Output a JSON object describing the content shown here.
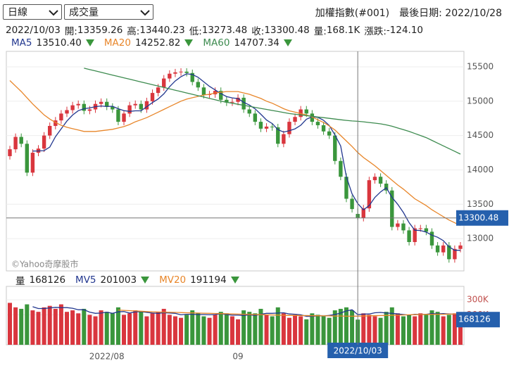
{
  "header": {
    "period": "日線",
    "indicator": "成交量",
    "symbol": "加權指數(#001)",
    "last_date": "最後日期: 2022/10/28"
  },
  "info": {
    "date": "2022/10/03",
    "items": [
      {
        "label": "開:",
        "value": "13359.26"
      },
      {
        "label": "高:",
        "value": "13440.23"
      },
      {
        "label": "低:",
        "value": "13273.48"
      },
      {
        "label": "收:",
        "value": "13300.48"
      },
      {
        "label": "量:",
        "value": "168.1K"
      },
      {
        "label": "漲跌:",
        "value": "-124.10"
      }
    ]
  },
  "watermark": "©Yahoo奇摩股市",
  "chart_data": {
    "type": "candlestick",
    "up_color": "#d9363e",
    "down_color": "#3a963c",
    "grid": true,
    "categories": [
      null,
      null,
      null,
      null,
      null,
      null,
      null,
      null,
      null,
      null,
      null,
      null,
      null,
      null,
      null,
      null,
      null,
      "2022/08",
      null,
      null,
      null,
      null,
      null,
      null,
      null,
      null,
      null,
      null,
      null,
      null,
      null,
      null,
      null,
      null,
      null,
      null,
      null,
      null,
      null,
      null,
      "09",
      null,
      null,
      null,
      null,
      null,
      null,
      null,
      null,
      null,
      null,
      null,
      null,
      null,
      null,
      null,
      null,
      null,
      null,
      null,
      null,
      "2022/10/03",
      null,
      null,
      null,
      null,
      null,
      null,
      null,
      null,
      null,
      null,
      null,
      null,
      null,
      null,
      null,
      null,
      null,
      null
    ],
    "open": [
      14200,
      14300,
      14480,
      14380,
      13960,
      14250,
      14310,
      14500,
      14640,
      14720,
      14820,
      14870,
      14940,
      14960,
      14860,
      14880,
      14960,
      14990,
      14920,
      14880,
      14700,
      14820,
      14940,
      14960,
      14880,
      15000,
      15120,
      15200,
      15330,
      15400,
      15420,
      15430,
      15410,
      15280,
      15200,
      15090,
      15100,
      15150,
      15020,
      14980,
      14990,
      15050,
      14880,
      14820,
      14700,
      14600,
      14630,
      14620,
      14380,
      14520,
      14700,
      14770,
      14880,
      14820,
      14700,
      14650,
      14560,
      14500,
      14130,
      13900,
      13580,
      13359.26,
      13300.48,
      13440,
      13850,
      13900,
      13800,
      13700,
      13170,
      13220,
      13120,
      12950,
      13150,
      13150,
      13100,
      12900,
      12800,
      12900,
      12700,
      12850
    ],
    "high": [
      14350,
      14530,
      14530,
      14430,
      14300,
      14360,
      14550,
      14690,
      14770,
      14870,
      14920,
      14990,
      15010,
      15010,
      14930,
      15010,
      15040,
      15040,
      14970,
      14930,
      14870,
      14990,
      15010,
      15010,
      15050,
      15170,
      15250,
      15380,
      15450,
      15470,
      15480,
      15480,
      15460,
      15330,
      15250,
      15150,
      15200,
      15200,
      15070,
      15040,
      15100,
      15100,
      14930,
      14870,
      14750,
      14680,
      14680,
      14670,
      14570,
      14750,
      14820,
      14930,
      14930,
      14870,
      14750,
      14700,
      14610,
      14550,
      14180,
      13950,
      13630,
      13440.23,
      13490,
      13900,
      13950,
      13950,
      13850,
      13750,
      13270,
      13270,
      13170,
      13200,
      13200,
      13200,
      13150,
      12950,
      12950,
      12950,
      12900,
      12950
    ],
    "low": [
      14150,
      14250,
      14330,
      13910,
      13910,
      14200,
      14260,
      14450,
      14590,
      14670,
      14770,
      14820,
      14890,
      14810,
      14810,
      14830,
      14910,
      14870,
      14830,
      14650,
      14650,
      14770,
      14890,
      14830,
      14830,
      14950,
      15070,
      15150,
      15280,
      15350,
      15370,
      15360,
      15230,
      15150,
      15040,
      15040,
      15050,
      14970,
      14930,
      14930,
      14940,
      14830,
      14770,
      14650,
      14550,
      14550,
      14570,
      14330,
      14330,
      14470,
      14650,
      14720,
      14770,
      14650,
      14600,
      14510,
      14450,
      14080,
      13850,
      13530,
      13380,
      13273.48,
      13250,
      13390,
      13800,
      13750,
      13650,
      13120,
      13120,
      13070,
      12900,
      12900,
      13100,
      13050,
      12850,
      12750,
      12750,
      12650,
      12650,
      12800
    ],
    "close": [
      14300,
      14480,
      14380,
      13960,
      14250,
      14310,
      14500,
      14640,
      14720,
      14820,
      14870,
      14940,
      14960,
      14860,
      14880,
      14960,
      14990,
      14920,
      14880,
      14700,
      14820,
      14940,
      14960,
      14880,
      15000,
      15120,
      15200,
      15330,
      15400,
      15420,
      15430,
      15410,
      15280,
      15200,
      15090,
      15100,
      15150,
      15020,
      14980,
      14990,
      15050,
      14880,
      14820,
      14700,
      14600,
      14630,
      14620,
      14380,
      14520,
      14700,
      14770,
      14880,
      14820,
      14700,
      14650,
      14560,
      14500,
      14130,
      13900,
      13580,
      13430,
      13300.48,
      13440,
      13850,
      13900,
      13800,
      13700,
      13170,
      13220,
      13120,
      12950,
      13150,
      13150,
      13100,
      12900,
      12800,
      12900,
      12700,
      12850,
      12900
    ],
    "ylim": [
      12530,
      15725
    ],
    "yticks": [
      13000,
      13500,
      14000,
      14500,
      15000,
      15500
    ],
    "lines": [
      {
        "name": "MA5",
        "current": "13510.40",
        "color": "#22378f",
        "values": [
          null,
          null,
          null,
          null,
          14274,
          14276,
          14280,
          14332,
          14484,
          14598,
          14710,
          14798,
          14862,
          14890,
          14902,
          14920,
          14930,
          14922,
          14926,
          14890,
          14862,
          14852,
          14860,
          14860,
          14920,
          14980,
          15032,
          15106,
          15210,
          15294,
          15356,
          15398,
          15388,
          15348,
          15282,
          15216,
          15164,
          15112,
          15068,
          15048,
          15038,
          14984,
          14944,
          14888,
          14810,
          14726,
          14674,
          14586,
          14550,
          14570,
          14598,
          14650,
          14738,
          14774,
          14764,
          14722,
          14646,
          14508,
          14348,
          13900,
          13650,
          13510.4,
          13420,
          13480,
          13600,
          13680,
          13740,
          13600,
          13500,
          13380,
          13232,
          13122,
          13118,
          13094,
          13050,
          13020,
          12970,
          12880,
          12830,
          12830
        ]
      },
      {
        "name": "MA20",
        "current": "14252.82",
        "color": "#e8862a",
        "values": [
          15300,
          15220,
          15140,
          15050,
          14960,
          14880,
          14800,
          14740,
          14690,
          14650,
          14620,
          14600,
          14580,
          14560,
          14560,
          14560,
          14570,
          14580,
          14590,
          14610,
          14630,
          14660,
          14700,
          14730,
          14760,
          14800,
          14840,
          14880,
          14920,
          14960,
          15000,
          15030,
          15050,
          15070,
          15090,
          15100,
          15120,
          15130,
          15140,
          15140,
          15140,
          15120,
          15100,
          15070,
          15040,
          15000,
          14970,
          14930,
          14890,
          14860,
          14840,
          14820,
          14800,
          14770,
          14730,
          14690,
          14640,
          14580,
          14500,
          14420,
          14340,
          14252.82,
          14180,
          14120,
          14060,
          13990,
          13920,
          13850,
          13780,
          13720,
          13650,
          13580,
          13530,
          13480,
          13420,
          13370,
          13320,
          13270,
          13230,
          13190
        ]
      },
      {
        "name": "MA60",
        "current": "14707.34",
        "color": "#3d8b4f",
        "values": [
          null,
          null,
          null,
          null,
          null,
          null,
          null,
          null,
          null,
          null,
          null,
          null,
          null,
          15480,
          15460,
          15440,
          15420,
          15400,
          15380,
          15360,
          15340,
          15320,
          15300,
          15280,
          15260,
          15240,
          15220,
          15200,
          15180,
          15160,
          15140,
          15120,
          15100,
          15080,
          15060,
          15040,
          15020,
          15000,
          14985,
          14970,
          14955,
          14940,
          14925,
          14910,
          14895,
          14880,
          14865,
          14850,
          14835,
          14820,
          14810,
          14800,
          14790,
          14780,
          14770,
          14760,
          14750,
          14740,
          14730,
          14720,
          14712,
          14707.34,
          14700,
          14690,
          14680,
          14670,
          14655,
          14635,
          14610,
          14585,
          14560,
          14530,
          14500,
          14470,
          14430,
          14390,
          14350,
          14310,
          14270,
          14230
        ]
      }
    ],
    "volume": {
      "label": "量",
      "ylim": [
        0,
        390000
      ],
      "yticks": [
        {
          "value": 200000,
          "label": "200K"
        },
        {
          "value": 300000,
          "label": "300K"
        }
      ],
      "values": [
        280000,
        250000,
        240000,
        270000,
        230000,
        220000,
        250000,
        260000,
        240000,
        270000,
        220000,
        230000,
        210000,
        240000,
        200000,
        190000,
        230000,
        220000,
        210000,
        250000,
        200000,
        210000,
        230000,
        220000,
        190000,
        210000,
        220000,
        240000,
        200000,
        190000,
        180000,
        200000,
        230000,
        210000,
        190000,
        180000,
        200000,
        220000,
        210000,
        190000,
        170000,
        230000,
        220000,
        210000,
        240000,
        200000,
        190000,
        250000,
        210000,
        180000,
        200000,
        190000,
        170000,
        210000,
        200000,
        190000,
        180000,
        230000,
        240000,
        250000,
        230000,
        168126,
        210000,
        200000,
        190000,
        180000,
        220000,
        250000,
        210000,
        190000,
        200000,
        190000,
        210000,
        200000,
        230000,
        220000,
        190000,
        200000,
        210000,
        190000
      ],
      "lines": [
        {
          "name": "MV5",
          "color": "#22378f",
          "values": [
            null,
            null,
            null,
            null,
            254000,
            242000,
            242000,
            246000,
            250000,
            248000,
            248000,
            244000,
            234000,
            234000,
            218000,
            210000,
            212000,
            218000,
            210000,
            220000,
            222000,
            212000,
            220000,
            222000,
            216000,
            212000,
            210000,
            214000,
            212000,
            210000,
            200000,
            204000,
            204000,
            202000,
            202000,
            200000,
            202000,
            208000,
            202000,
            198000,
            198000,
            196000,
            200000,
            196000,
            204000,
            210000,
            210000,
            212000,
            214000,
            206000,
            204000,
            200000,
            190000,
            190000,
            194000,
            192000,
            196000,
            202000,
            212000,
            226000,
            234000,
            201003,
            205000,
            206000,
            214000,
            216000,
            212000,
            210000,
            206000,
            202000,
            198000,
            204000,
            202000,
            204000,
            208000,
            206000,
            208000,
            206000,
            204000,
            200000
          ]
        },
        {
          "name": "MV20",
          "color": "#e8862a",
          "values": [
            null,
            null,
            null,
            null,
            null,
            null,
            null,
            null,
            null,
            null,
            null,
            null,
            null,
            null,
            null,
            null,
            null,
            null,
            null,
            232000,
            230000,
            228000,
            226000,
            224000,
            222000,
            220000,
            219000,
            218000,
            217000,
            216000,
            215000,
            214000,
            213000,
            212000,
            211000,
            210000,
            209000,
            208000,
            207000,
            206000,
            205000,
            204000,
            203000,
            202000,
            201000,
            200000,
            199000,
            198000,
            197000,
            196000,
            196000,
            195000,
            195000,
            194000,
            194000,
            193000,
            193000,
            192000,
            192000,
            191000,
            191000,
            191194,
            192000,
            193000,
            194000,
            195000,
            196000,
            197000,
            198000,
            199000,
            200000,
            201000,
            202000,
            203000,
            203000,
            204000,
            204000,
            205000,
            205000,
            205000
          ]
        }
      ]
    }
  }
}
